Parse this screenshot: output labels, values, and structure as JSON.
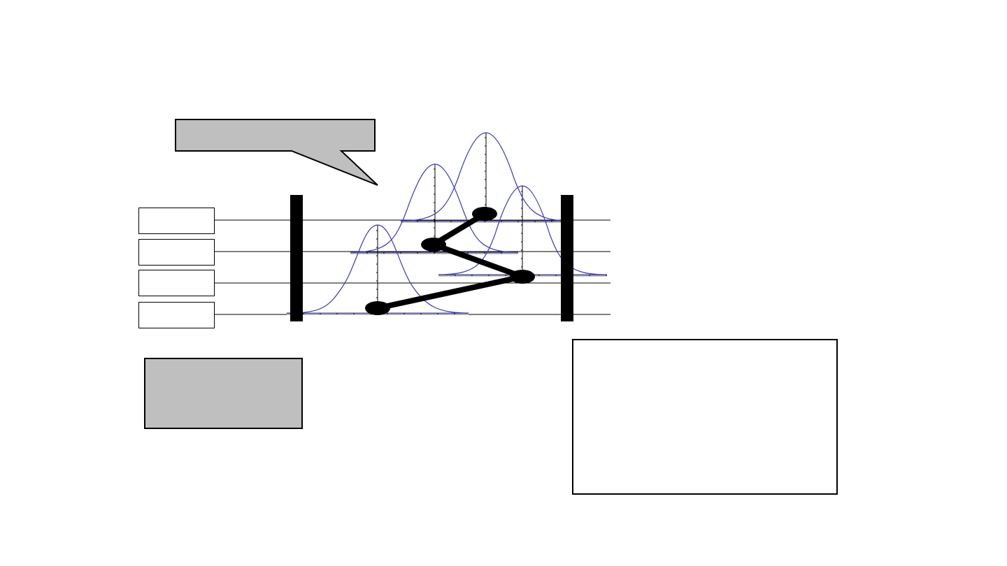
{
  "diagram": {
    "callout_text": "",
    "row_labels": [
      "",
      "",
      "",
      ""
    ],
    "note_text": "",
    "result_text": "",
    "colors": {
      "curve": "#3a3ab0",
      "axis": "#000000",
      "bar": "#000000",
      "path": "#000000",
      "callout_fill": "#bfbfbf",
      "baseline_shadow": "#9a9a9a"
    },
    "levels": 4,
    "distributions": [
      {
        "level": 1,
        "peak_rel": 0.24
      },
      {
        "level": 2,
        "peak_rel": 0.42
      },
      {
        "level": 3,
        "peak_rel": 0.62
      },
      {
        "level": 4,
        "peak_rel": 0.36
      }
    ],
    "path_sequence": [
      1,
      3,
      2,
      4
    ]
  }
}
